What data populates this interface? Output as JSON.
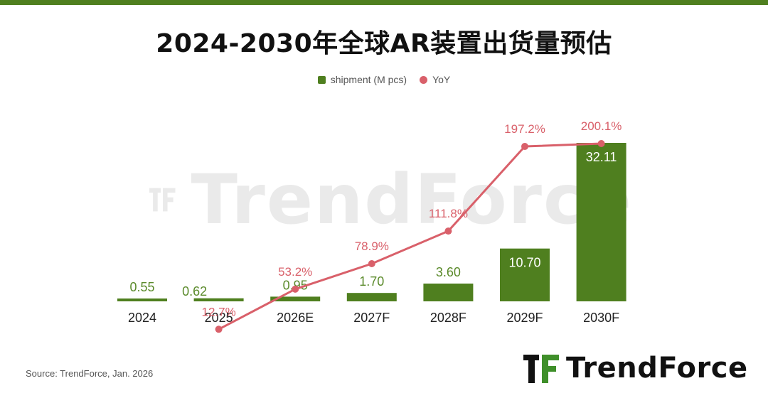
{
  "title": "2024-2030年全球AR装置出货量预估",
  "legend": {
    "bar_label": "shipment (M pcs)",
    "line_label": "YoY"
  },
  "source": "Source: TrendForce, Jan. 2026",
  "brand": {
    "logo_text": "TrendForce",
    "watermark_text": "TrendForce"
  },
  "colors": {
    "bar": "#4f7f1f",
    "line": "#d9606a",
    "top_bar": "#4f7f1f"
  },
  "chart_data": {
    "type": "bar",
    "title": "2024-2030年全球AR装置出货量预估",
    "categories": [
      "2024",
      "2025",
      "2026E",
      "2027F",
      "2028F",
      "2029F",
      "2030F"
    ],
    "series": [
      {
        "name": "shipment (M pcs)",
        "type": "bar",
        "values": [
          0.55,
          0.62,
          0.95,
          1.7,
          3.6,
          10.7,
          32.11
        ],
        "labels": [
          "0.55",
          "0.62",
          "0.95",
          "1.70",
          "3.60",
          "10.70",
          "32.11"
        ]
      },
      {
        "name": "YoY",
        "type": "line",
        "values": [
          null,
          12.7,
          53.2,
          78.9,
          111.8,
          197.2,
          200.1
        ],
        "labels": [
          "",
          "12.7%",
          "53.2%",
          "78.9%",
          "111.8%",
          "197.2%",
          "200.1%"
        ]
      }
    ],
    "ylim": [
      0,
      32.11
    ],
    "y2lim": [
      0,
      200.1
    ],
    "legend_position": "top-center",
    "grid": false
  }
}
